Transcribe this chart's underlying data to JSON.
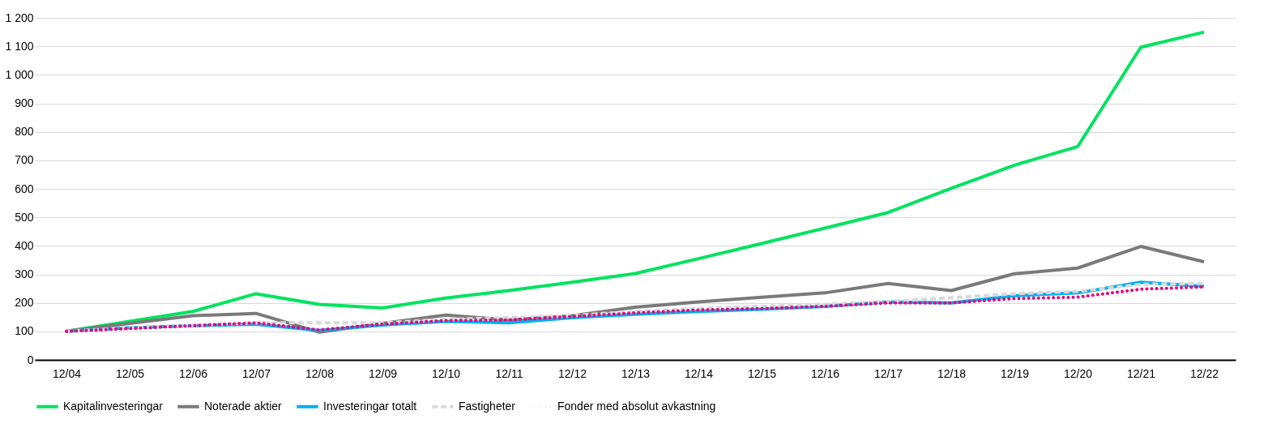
{
  "chart_data": {
    "type": "line",
    "categories": [
      "12/04",
      "12/05",
      "12/06",
      "12/07",
      "12/08",
      "12/09",
      "12/10",
      "12/11",
      "12/12",
      "12/13",
      "12/14",
      "12/15",
      "12/16",
      "12/17",
      "12/18",
      "12/19",
      "12/20",
      "12/21",
      "12/22"
    ],
    "series": [
      {
        "name": "Kapitalinvesteringar",
        "color": "#00e35f",
        "line_style": "solid",
        "values": [
          100,
          135,
          170,
          232,
          195,
          182,
          217,
          243,
          272,
          303,
          355,
          408,
          462,
          517,
          602,
          683,
          748,
          1097,
          1150
        ]
      },
      {
        "name": "Noterade aktier",
        "color": "#7a7a7a",
        "line_style": "solid",
        "values": [
          100,
          128,
          155,
          163,
          97,
          128,
          157,
          140,
          155,
          185,
          203,
          220,
          235,
          268,
          243,
          302,
          322,
          398,
          344
        ]
      },
      {
        "name": "Investeringar totalt",
        "color": "#00b0f0",
        "line_style": "solid",
        "values": [
          100,
          112,
          120,
          125,
          103,
          122,
          135,
          130,
          148,
          160,
          170,
          178,
          188,
          203,
          200,
          225,
          235,
          272,
          258
        ]
      },
      {
        "name": "Fastigheter",
        "color": "#d9d9d9",
        "line_style": "dashed",
        "values": [
          100,
          112,
          122,
          130,
          130,
          130,
          142,
          148,
          155,
          170,
          180,
          188,
          195,
          205,
          218,
          232,
          240,
          265,
          268
        ]
      },
      {
        "name": "Fonder med absolut avkastning",
        "color": "#e6007e",
        "line_style": "dotted",
        "values": [
          100,
          110,
          120,
          130,
          105,
          125,
          138,
          140,
          152,
          165,
          175,
          180,
          188,
          200,
          200,
          215,
          220,
          248,
          256
        ]
      }
    ],
    "ylim": [
      0,
      1200
    ],
    "yticks": [
      0,
      100,
      200,
      300,
      400,
      500,
      600,
      700,
      800,
      900,
      {
        "value": 1000,
        "label": "1 000"
      },
      {
        "value": 1100,
        "label": "1 100"
      },
      {
        "value": 1200,
        "label": "1 200"
      }
    ],
    "grid": "y",
    "legend": "bottom"
  }
}
